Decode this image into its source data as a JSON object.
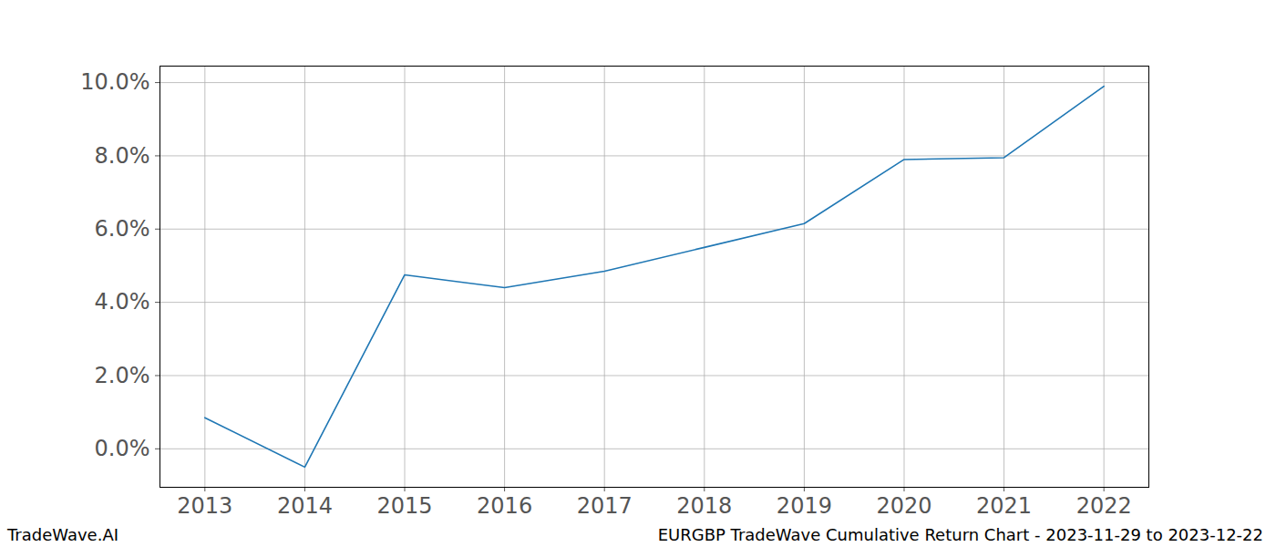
{
  "chart_data": {
    "type": "line",
    "title": "EURGBP TradeWave Cumulative Return Chart - 2023-11-29 to 2023-12-22",
    "annotations": [
      "TradeWave.AI"
    ],
    "x": [
      2013,
      2014,
      2015,
      2016,
      2017,
      2018,
      2019,
      2020,
      2021,
      2022
    ],
    "values": [
      0.85,
      -0.5,
      4.75,
      4.4,
      4.85,
      5.5,
      6.15,
      7.9,
      7.95,
      9.9
    ],
    "color": "#1f77b4",
    "xlim": [
      2012.55,
      2022.45
    ],
    "xticks": [
      2013,
      2014,
      2015,
      2016,
      2017,
      2018,
      2019,
      2020,
      2021,
      2022
    ],
    "ylim": [
      -1.05,
      10.45
    ],
    "yticks": [
      {
        "value": 0,
        "label": "0.0%"
      },
      {
        "value": 2,
        "label": "2.0%"
      },
      {
        "value": 4,
        "label": "4.0%"
      },
      {
        "value": 6,
        "label": "6.0%"
      },
      {
        "value": 8,
        "label": "8.0%"
      },
      {
        "value": 10,
        "label": "10.0%"
      }
    ],
    "grid": true
  }
}
